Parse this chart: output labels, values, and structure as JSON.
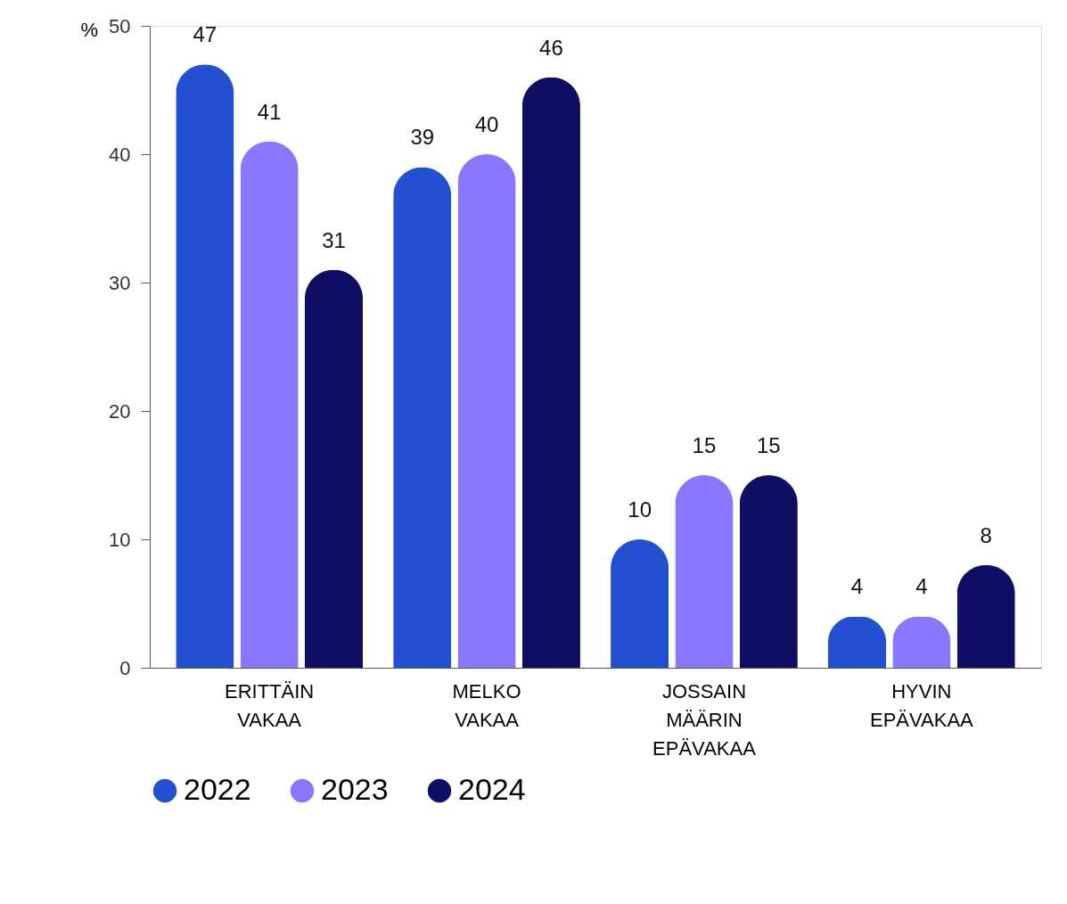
{
  "chart_data": {
    "type": "bar",
    "ylabel": "%",
    "categories": [
      "ERITTÄIN VAKAA",
      "MELKO VAKAA",
      "JOSSAIN MÄÄRIN EPÄVAKAA",
      "HYVIN EPÄVAKAA"
    ],
    "series": [
      {
        "name": "2022",
        "color": "#2350d1",
        "values": [
          47,
          39,
          10,
          4
        ]
      },
      {
        "name": "2023",
        "color": "#8778fd",
        "values": [
          41,
          40,
          15,
          4
        ]
      },
      {
        "name": "2024",
        "color": "#0e0e62",
        "values": [
          31,
          46,
          15,
          8
        ]
      }
    ],
    "ylim": [
      0,
      50
    ],
    "yticks": [
      0,
      10,
      20,
      30,
      40,
      50
    ],
    "data_labels": true,
    "grid": false,
    "legend": "bottom left"
  }
}
